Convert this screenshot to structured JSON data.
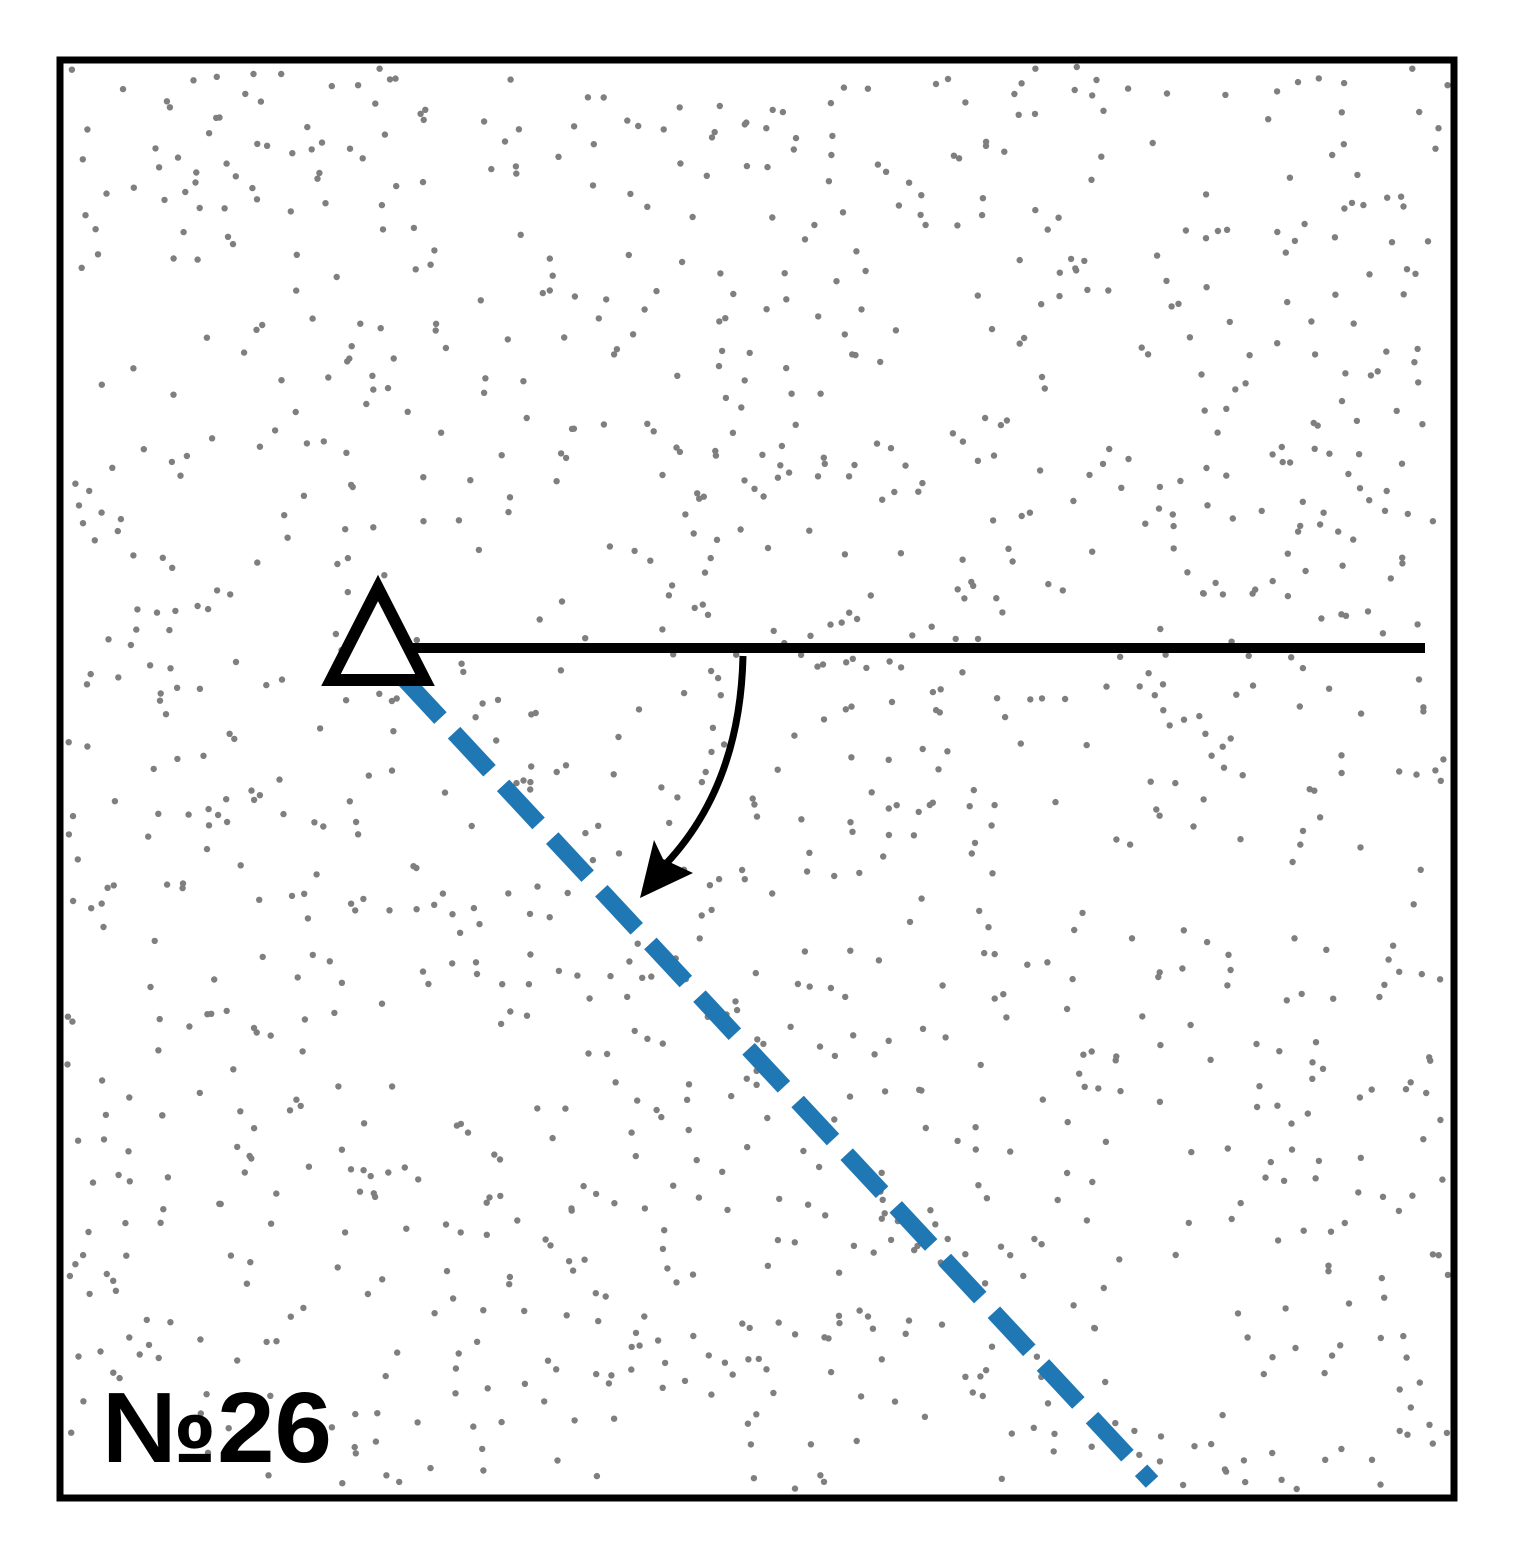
{
  "diagram": {
    "label": "№26",
    "colors": {
      "background": "#ffffff",
      "frame": "#000000",
      "speckle": "#7f7f7f",
      "reference_line": "#000000",
      "rotated_line": "#1f77b4",
      "arrow": "#000000"
    },
    "rotation": {
      "direction": "clockwise",
      "angle_degrees": 45
    },
    "elements": {
      "vertex": "triangle-vertex-marker",
      "reference": "solid-horizontal-ray",
      "rotated": "dashed-ray",
      "arrow": "curved-rotation-arrow"
    }
  }
}
